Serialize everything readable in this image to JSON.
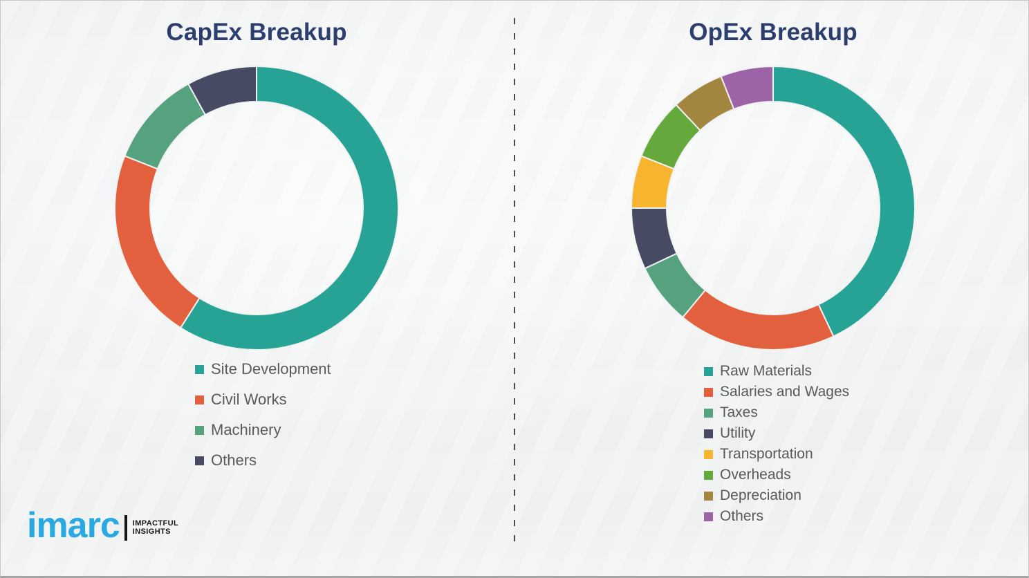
{
  "titles": {
    "left": "CapEx Breakup",
    "right": "OpEx Breakup"
  },
  "logo": {
    "brand": "imarc",
    "tagline_line1": "IMPACTFUL",
    "tagline_line2": "INSIGHTS",
    "brand_color": "#29a9e1",
    "tagline_color": "#151515"
  },
  "colors": {
    "title_text": "#2b3e6d",
    "legend_text": "#595959",
    "background": "#f0f1f1",
    "divider_dash": "#4a4a4a"
  },
  "chart_data": [
    {
      "type": "pie",
      "subtype": "donut",
      "title": "CapEx Breakup",
      "categories": [
        "Site Development",
        "Civil Works",
        "Machinery",
        "Others"
      ],
      "values": [
        59,
        22,
        11,
        8
      ],
      "colors": [
        "#27a395",
        "#e2603e",
        "#56a17e",
        "#464a63"
      ],
      "start_angle_deg": 0,
      "direction": "clockwise",
      "inner_radius_ratio": 0.75,
      "legend_position": "bottom-left",
      "data_labels": "none"
    },
    {
      "type": "pie",
      "subtype": "donut",
      "title": "OpEx Breakup",
      "categories": [
        "Raw Materials",
        "Salaries and Wages",
        "Taxes",
        "Utility",
        "Transportation",
        "Overheads",
        "Depreciation",
        "Others"
      ],
      "values": [
        43,
        18,
        7,
        7,
        6,
        7,
        6,
        6
      ],
      "colors": [
        "#27a395",
        "#e2603e",
        "#56a17e",
        "#464a63",
        "#f6b42f",
        "#65a83c",
        "#a28640",
        "#9c64a6"
      ],
      "start_angle_deg": 0,
      "direction": "clockwise",
      "inner_radius_ratio": 0.75,
      "legend_position": "bottom-left",
      "data_labels": "none"
    }
  ]
}
